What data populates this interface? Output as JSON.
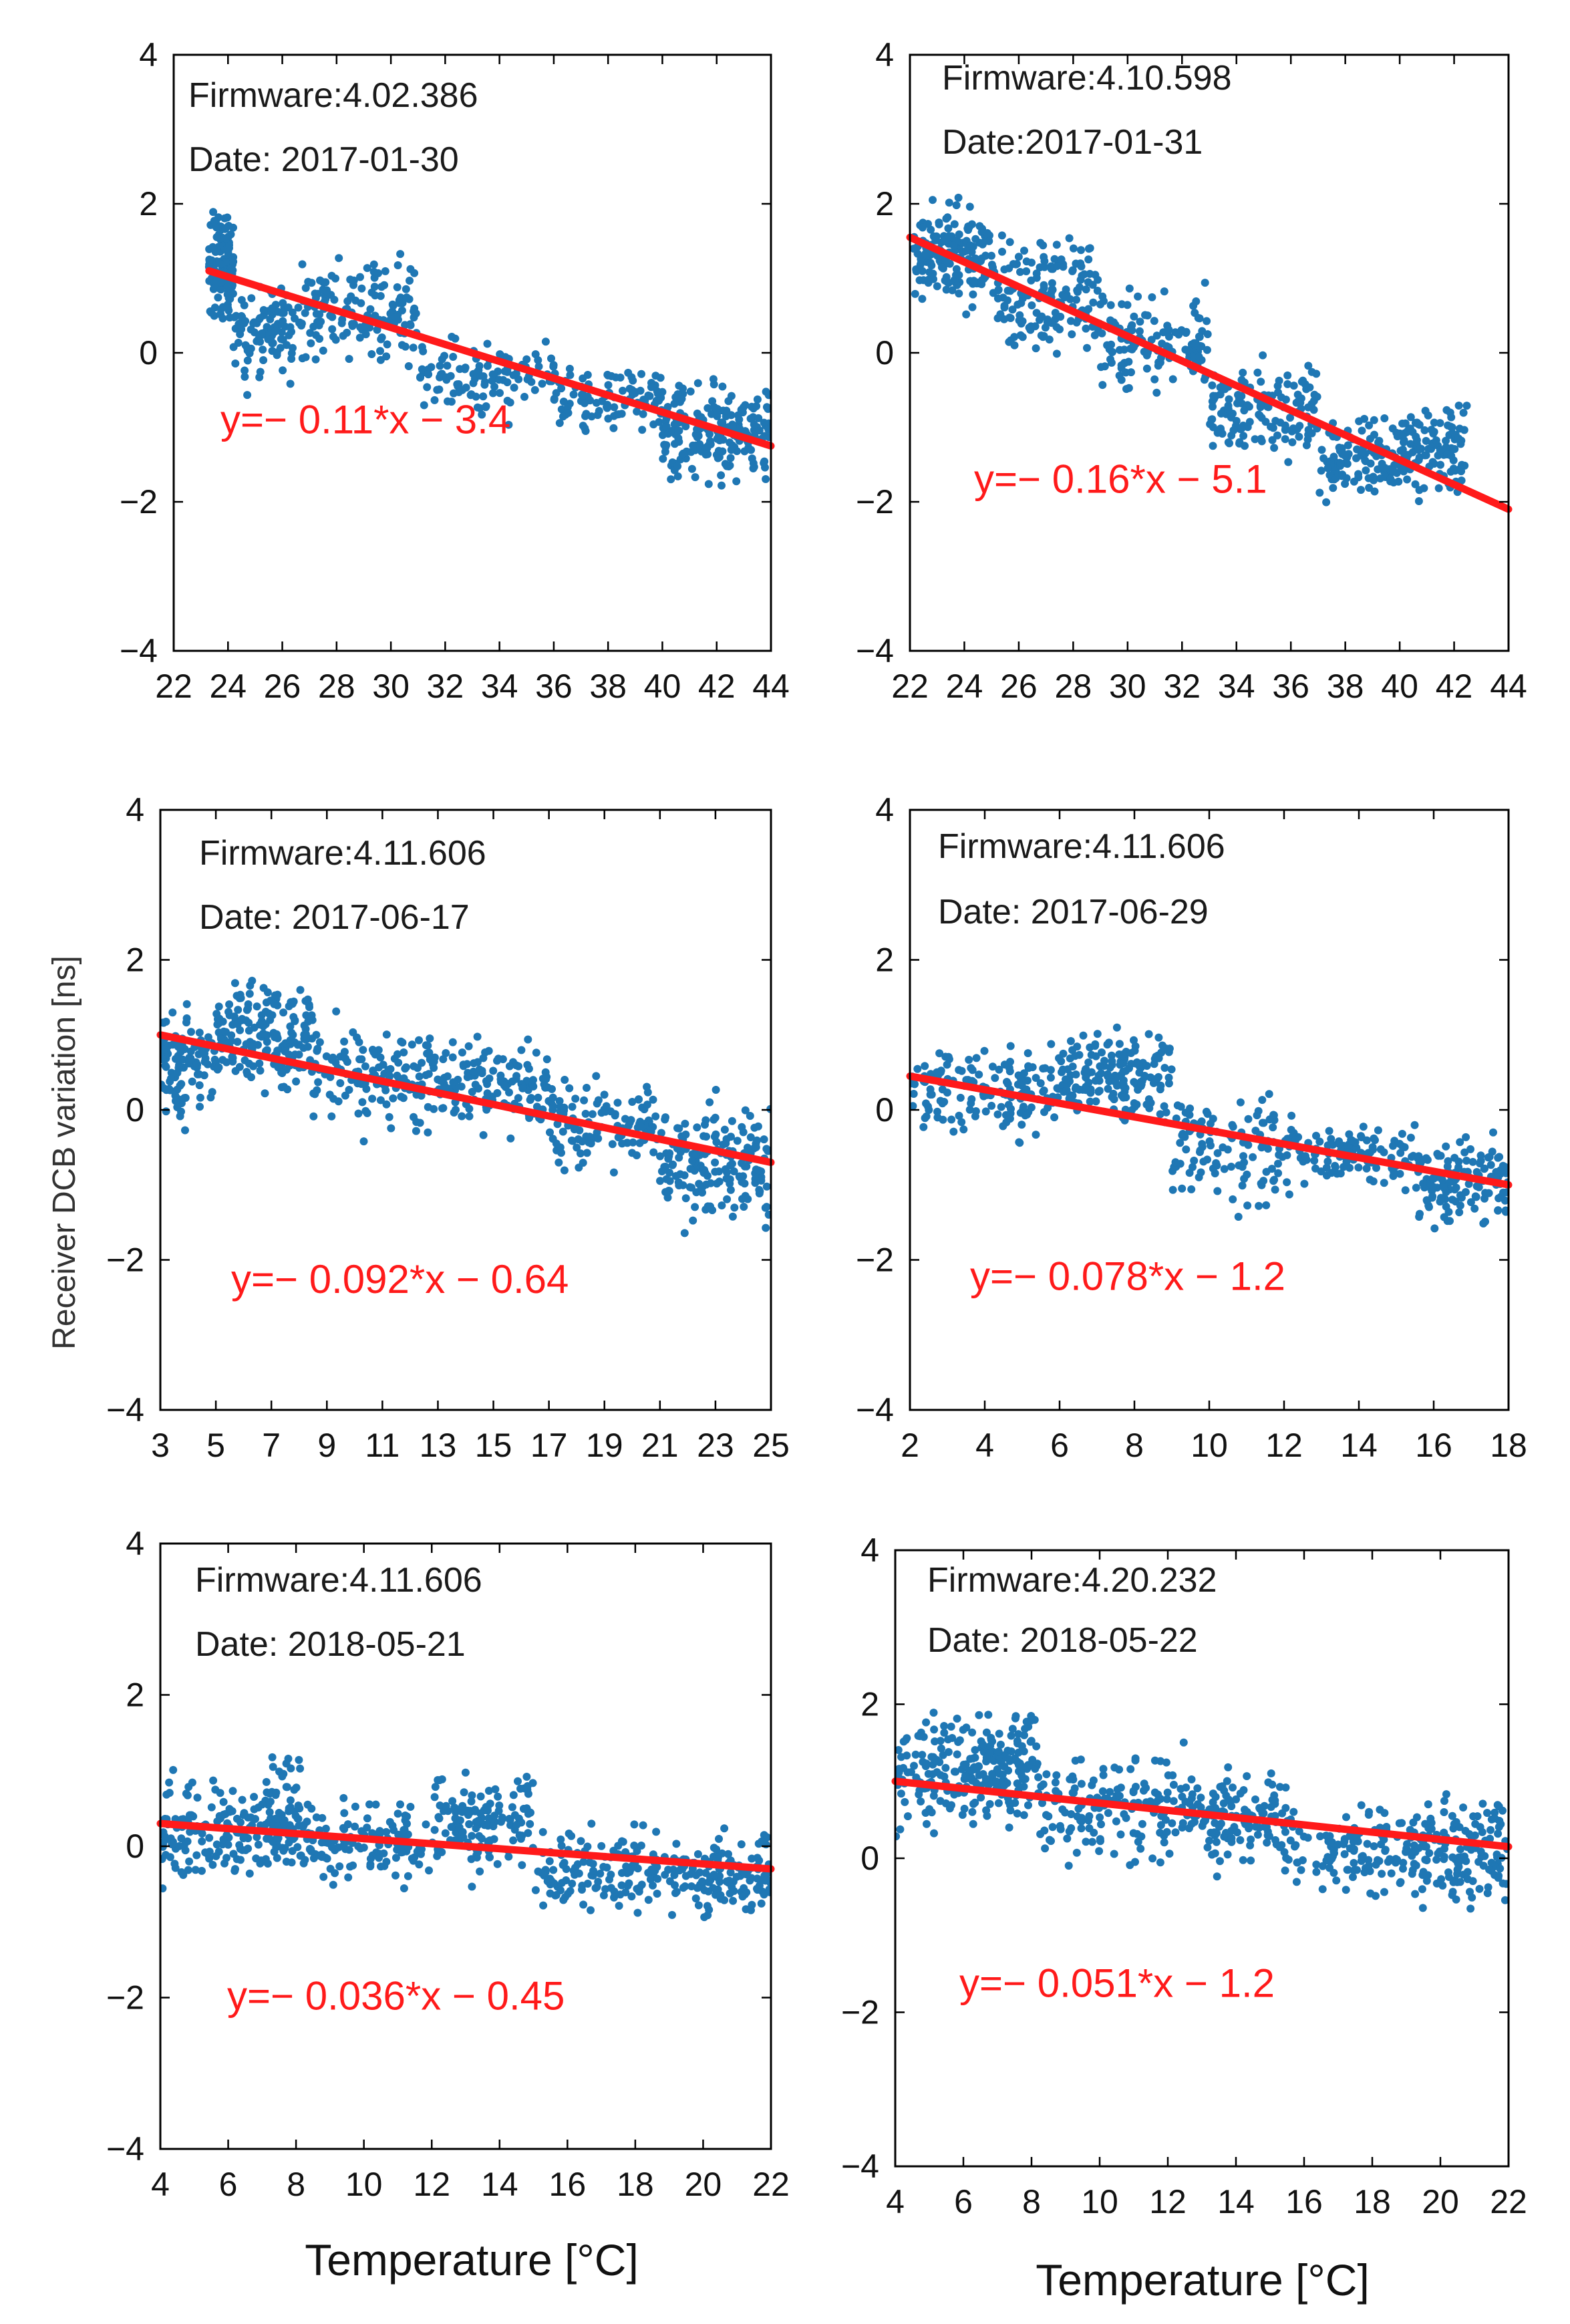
{
  "figure": {
    "xlabel": "Temperature [°C]",
    "ylabel": "Receiver DCB variation [ns]",
    "colors": {
      "scatter": "#1f77b4",
      "fit": "#ff1a1a",
      "axis": "#000000"
    }
  },
  "chart_data": [
    {
      "type": "scatter",
      "firmware": "Firmware:4.02.386",
      "date": "Date: 2017-01-30",
      "equation": "y=− 0.11*x − 3.4",
      "xlim": [
        22,
        44
      ],
      "ylim": [
        -4,
        4
      ],
      "xticks": [
        22,
        24,
        26,
        28,
        30,
        32,
        34,
        36,
        38,
        40,
        42,
        44
      ],
      "yticks": [
        -4,
        -2,
        0,
        2,
        4
      ],
      "x_data_range": [
        23.3,
        44.0
      ],
      "fit": {
        "x": [
          23.3,
          44.0
        ],
        "y": [
          1.1,
          -1.25
        ]
      },
      "clusters": [
        {
          "x": [
            23.3,
            24.2
          ],
          "y": [
            0.3,
            2.1
          ],
          "n": 140
        },
        {
          "x": [
            24.2,
            26.5
          ],
          "y": [
            -0.6,
            1.2
          ],
          "n": 100
        },
        {
          "x": [
            26.5,
            31.0
          ],
          "y": [
            -0.5,
            1.6
          ],
          "n": 150
        },
        {
          "x": [
            31.0,
            36.0
          ],
          "y": [
            -1.0,
            0.4
          ],
          "n": 110
        },
        {
          "x": [
            36.0,
            40.0
          ],
          "y": [
            -1.3,
            0.1
          ],
          "n": 110
        },
        {
          "x": [
            40.0,
            44.0
          ],
          "y": [
            -2.0,
            -0.1
          ],
          "n": 200
        }
      ]
    },
    {
      "type": "scatter",
      "firmware": "Firmware:4.10.598",
      "date": "Date:2017-01-31",
      "equation": "y=− 0.16*x − 5.1",
      "xlim": [
        22,
        44
      ],
      "ylim": [
        -4,
        4
      ],
      "xticks": [
        22,
        24,
        26,
        28,
        30,
        32,
        34,
        36,
        38,
        40,
        42,
        44
      ],
      "yticks": [
        -4,
        -2,
        0,
        2,
        4
      ],
      "x_data_range": [
        22.0,
        42.5
      ],
      "fit": {
        "x": [
          22.0,
          44.0
        ],
        "y": [
          1.55,
          -2.1
        ]
      },
      "clusters": [
        {
          "x": [
            22.0,
            25.0
          ],
          "y": [
            0.3,
            2.3
          ],
          "n": 170
        },
        {
          "x": [
            25.0,
            29.0
          ],
          "y": [
            -0.3,
            1.9
          ],
          "n": 160
        },
        {
          "x": [
            29.0,
            33.0
          ],
          "y": [
            -0.9,
            1.1
          ],
          "n": 130
        },
        {
          "x": [
            33.0,
            37.0
          ],
          "y": [
            -1.6,
            0.1
          ],
          "n": 140
        },
        {
          "x": [
            37.0,
            40.0
          ],
          "y": [
            -2.2,
            -0.6
          ],
          "n": 110
        },
        {
          "x": [
            40.0,
            42.5
          ],
          "y": [
            -2.1,
            -0.5
          ],
          "n": 120
        }
      ]
    },
    {
      "type": "scatter",
      "firmware": "Firmware:4.11.606",
      "date": "Date: 2017-06-17",
      "equation": "y=− 0.092*x − 0.64",
      "xlim": [
        3,
        25
      ],
      "ylim": [
        -4,
        4
      ],
      "xticks": [
        3,
        5,
        7,
        9,
        11,
        13,
        15,
        17,
        19,
        21,
        23,
        25
      ],
      "yticks": [
        -4,
        -2,
        0,
        2,
        4
      ],
      "x_data_range": [
        3.0,
        25.0
      ],
      "fit": {
        "x": [
          3.0,
          25.0
        ],
        "y": [
          1.0,
          -0.7
        ]
      },
      "clusters": [
        {
          "x": [
            3.0,
            5.0
          ],
          "y": [
            -0.4,
            1.6
          ],
          "n": 100
        },
        {
          "x": [
            5.0,
            8.5
          ],
          "y": [
            0.0,
            2.0
          ],
          "n": 180
        },
        {
          "x": [
            8.5,
            13.0
          ],
          "y": [
            -0.6,
            1.5
          ],
          "n": 140
        },
        {
          "x": [
            13.0,
            17.0
          ],
          "y": [
            -0.5,
            1.2
          ],
          "n": 130
        },
        {
          "x": [
            17.0,
            21.0
          ],
          "y": [
            -1.0,
            0.6
          ],
          "n": 110
        },
        {
          "x": [
            21.0,
            25.0
          ],
          "y": [
            -1.8,
            0.4
          ],
          "n": 170
        }
      ]
    },
    {
      "type": "scatter",
      "firmware": "Firmware:4.11.606",
      "date": "Date: 2017-06-29",
      "equation": "y=− 0.078*x − 1.2",
      "xlim": [
        2,
        18
      ],
      "ylim": [
        -4,
        4
      ],
      "xticks": [
        2,
        4,
        6,
        8,
        10,
        12,
        14,
        16,
        18
      ],
      "yticks": [
        -4,
        -2,
        0,
        2,
        4
      ],
      "x_data_range": [
        2.0,
        18.0
      ],
      "fit": {
        "x": [
          2.0,
          18.0
        ],
        "y": [
          0.45,
          -1.0
        ]
      },
      "clusters": [
        {
          "x": [
            2.0,
            6.0
          ],
          "y": [
            -0.6,
            1.1
          ],
          "n": 150
        },
        {
          "x": [
            6.0,
            9.0
          ],
          "y": [
            -0.4,
            1.3
          ],
          "n": 170
        },
        {
          "x": [
            9.0,
            12.5
          ],
          "y": [
            -1.6,
            0.4
          ],
          "n": 130
        },
        {
          "x": [
            12.5,
            15.5
          ],
          "y": [
            -1.2,
            0.0
          ],
          "n": 100
        },
        {
          "x": [
            15.5,
            18.0
          ],
          "y": [
            -1.7,
            -0.2
          ],
          "n": 140
        }
      ]
    },
    {
      "type": "scatter",
      "firmware": "Firmware:4.11.606",
      "date": "Date: 2018-05-21",
      "equation": "y=− 0.036*x − 0.45",
      "xlim": [
        4,
        22
      ],
      "ylim": [
        -4,
        4
      ],
      "xticks": [
        4,
        6,
        8,
        10,
        12,
        14,
        16,
        18,
        20,
        22
      ],
      "yticks": [
        -4,
        -2,
        0,
        2,
        4
      ],
      "x_data_range": [
        4.0,
        22.0
      ],
      "fit": {
        "x": [
          4.0,
          22.0
        ],
        "y": [
          0.3,
          -0.3
        ]
      },
      "clusters": [
        {
          "x": [
            4.0,
            7.0
          ],
          "y": [
            -0.7,
            1.1
          ],
          "n": 130
        },
        {
          "x": [
            7.0,
            8.2
          ],
          "y": [
            -0.8,
            1.5
          ],
          "n": 90
        },
        {
          "x": [
            8.2,
            12.0
          ],
          "y": [
            -0.7,
            0.8
          ],
          "n": 130
        },
        {
          "x": [
            12.0,
            15.0
          ],
          "y": [
            -0.6,
            1.2
          ],
          "n": 140
        },
        {
          "x": [
            15.0,
            19.0
          ],
          "y": [
            -1.1,
            0.4
          ],
          "n": 130
        },
        {
          "x": [
            19.0,
            22.0
          ],
          "y": [
            -1.1,
            0.3
          ],
          "n": 140
        }
      ]
    },
    {
      "type": "scatter",
      "firmware": "Firmware:4.20.232",
      "date": "Date: 2018-05-22",
      "equation": "y=− 0.051*x − 1.2",
      "xlim": [
        4,
        22
      ],
      "ylim": [
        -4,
        4
      ],
      "xticks": [
        4,
        6,
        8,
        10,
        12,
        14,
        16,
        18,
        20,
        22
      ],
      "yticks": [
        -4,
        -2,
        0,
        2,
        4
      ],
      "x_data_range": [
        4.0,
        22.0
      ],
      "fit": {
        "x": [
          4.0,
          22.0
        ],
        "y": [
          1.0,
          0.15
        ]
      },
      "clusters": [
        {
          "x": [
            4.0,
            6.5
          ],
          "y": [
            0.1,
            2.1
          ],
          "n": 130
        },
        {
          "x": [
            6.5,
            8.2
          ],
          "y": [
            0.2,
            2.2
          ],
          "n": 120
        },
        {
          "x": [
            8.2,
            12.5
          ],
          "y": [
            -0.3,
            1.6
          ],
          "n": 150
        },
        {
          "x": [
            12.5,
            15.5
          ],
          "y": [
            -0.4,
            1.4
          ],
          "n": 130
        },
        {
          "x": [
            15.5,
            19.0
          ],
          "y": [
            -0.7,
            0.8
          ],
          "n": 110
        },
        {
          "x": [
            19.0,
            22.0
          ],
          "y": [
            -0.8,
            1.0
          ],
          "n": 150
        }
      ]
    }
  ]
}
